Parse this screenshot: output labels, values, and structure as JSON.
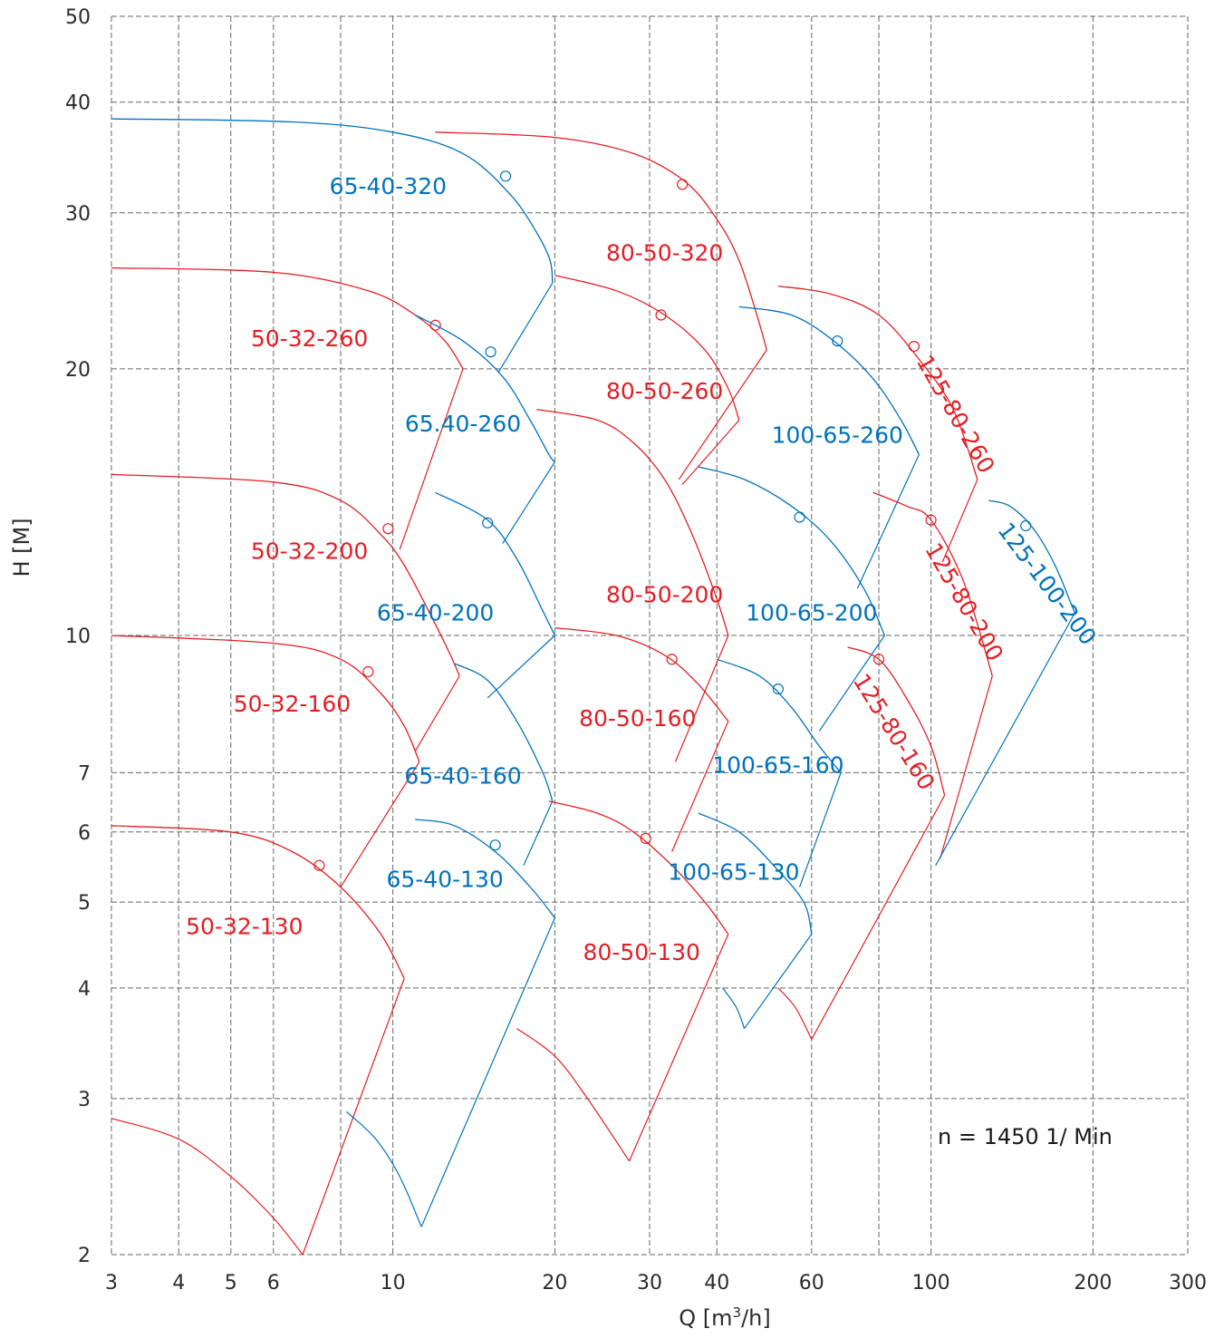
{
  "chart_data": {
    "type": "line",
    "title": "",
    "xlabel": "Q [m³/h]",
    "ylabel": "H [M]",
    "x_scale": "log",
    "y_scale": "log",
    "xlim": [
      3,
      300
    ],
    "ylim": [
      2,
      50
    ],
    "x_ticks": [
      3,
      4,
      5,
      6,
      10,
      20,
      30,
      40,
      60,
      100,
      200,
      300
    ],
    "y_ticks": [
      2,
      3,
      4,
      5,
      6,
      7,
      10,
      20,
      30,
      40,
      50
    ],
    "x_grid": [
      3,
      4,
      5,
      6,
      8,
      10,
      20,
      30,
      40,
      60,
      80,
      100,
      200,
      300
    ],
    "y_grid": [
      2,
      3,
      4,
      5,
      6,
      7,
      10,
      20,
      30,
      40,
      50
    ],
    "grid": true,
    "annotation": "n = 1450 1/ Min",
    "colors": {
      "red": "#e31e24",
      "blue": "#0072bc",
      "grid": "#666666"
    },
    "series": [
      {
        "name": "65-40-320",
        "color": "blue",
        "curve": [
          [
            3.0,
            38.3
          ],
          [
            6.5,
            38.0
          ],
          [
            10,
            37.0
          ],
          [
            13.5,
            35.0
          ],
          [
            16.5,
            31.5
          ],
          [
            18.5,
            28.5
          ],
          [
            19.6,
            26.5
          ],
          [
            19.8,
            25.0
          ]
        ],
        "edge": [
          [
            19.8,
            25.0
          ],
          [
            15.7,
            19.8
          ]
        ],
        "bep": [
          16.2,
          33.0
        ],
        "label_pos": [
          9.8,
          31.5
        ]
      },
      {
        "name": "80-50-320",
        "color": "red",
        "curve": [
          [
            12.0,
            37.0
          ],
          [
            20,
            36.5
          ],
          [
            28,
            35.0
          ],
          [
            35,
            32.5
          ],
          [
            40,
            29.5
          ],
          [
            44,
            26.5
          ],
          [
            48,
            22.5
          ],
          [
            49.5,
            21.0
          ]
        ],
        "edge": [
          [
            49.5,
            21.0
          ],
          [
            34.0,
            15.0
          ]
        ],
        "bep": [
          34.5,
          32.3
        ],
        "label_pos": [
          32.0,
          26.5
        ]
      },
      {
        "name": "50-32-260",
        "color": "red",
        "curve": [
          [
            3.0,
            26.0
          ],
          [
            6,
            25.7
          ],
          [
            9,
            24.5
          ],
          [
            11,
            23.0
          ],
          [
            12.5,
            21.5
          ],
          [
            13.5,
            20.0
          ]
        ],
        "edge": [
          [
            13.5,
            20.0
          ],
          [
            10.3,
            12.5
          ]
        ],
        "bep": [
          12.0,
          22.4
        ],
        "label_pos": [
          7.0,
          21.2
        ]
      },
      {
        "name": "65.40-260",
        "color": "blue",
        "curve": [
          [
            11.0,
            23.0
          ],
          [
            13.5,
            21.5
          ],
          [
            16,
            19.6
          ],
          [
            18,
            17.5
          ],
          [
            19.5,
            16.0
          ],
          [
            20.0,
            15.7
          ]
        ],
        "edge": [
          [
            20.0,
            15.7
          ],
          [
            16.0,
            12.7
          ]
        ],
        "bep": [
          15.2,
          20.9
        ],
        "label_pos": [
          13.5,
          17.0
        ]
      },
      {
        "name": "80-50-260",
        "color": "red",
        "curve": [
          [
            20.0,
            25.5
          ],
          [
            26,
            24.5
          ],
          [
            32,
            23.0
          ],
          [
            38,
            21.0
          ],
          [
            42,
            19.0
          ],
          [
            44,
            17.5
          ]
        ],
        "edge": [
          [
            44,
            17.5
          ],
          [
            34.5,
            14.8
          ]
        ],
        "bep": [
          31.5,
          23.0
        ],
        "label_pos": [
          32.0,
          18.5
        ]
      },
      {
        "name": "100-65-260",
        "color": "blue",
        "curve": [
          [
            44,
            23.5
          ],
          [
            55,
            23.0
          ],
          [
            66,
            21.5
          ],
          [
            78,
            19.5
          ],
          [
            88,
            17.5
          ],
          [
            95,
            16.0
          ]
        ],
        "edge": [
          [
            95,
            16.0
          ],
          [
            73,
            11.3
          ]
        ],
        "bep": [
          67,
          21.5
        ],
        "label_pos": [
          67,
          16.5
        ]
      },
      {
        "name": "125-80-260",
        "color": "red",
        "curve": [
          [
            52,
            24.8
          ],
          [
            65,
            24.3
          ],
          [
            80,
            23.0
          ],
          [
            95,
            20.5
          ],
          [
            110,
            18.0
          ],
          [
            122,
            15.0
          ]
        ],
        "edge": [
          [
            122,
            15.0
          ],
          [
            105,
            12.1
          ]
        ],
        "bep": [
          93,
          21.2
        ],
        "label_pos": [
          108,
          17.6
        ],
        "rotate": 60
      },
      {
        "name": "50-32-200",
        "color": "red",
        "curve": [
          [
            3.0,
            15.2
          ],
          [
            6,
            14.9
          ],
          [
            8,
            14.2
          ],
          [
            9.5,
            13.0
          ],
          [
            10.5,
            12.0
          ],
          [
            11.8,
            10.5
          ],
          [
            12.8,
            9.5
          ],
          [
            13.3,
            9.0
          ]
        ],
        "edge": [
          [
            13.3,
            9.0
          ],
          [
            11.0,
            7.4
          ]
        ],
        "bep": [
          9.8,
          13.2
        ],
        "label_pos": [
          7.0,
          12.2
        ]
      },
      {
        "name": "65-40-200",
        "color": "blue",
        "curve": [
          [
            12.0,
            14.5
          ],
          [
            15,
            13.5
          ],
          [
            17,
            12.2
          ],
          [
            18.8,
            10.8
          ],
          [
            20.0,
            10.0
          ]
        ],
        "edge": [
          [
            20.0,
            10.0
          ],
          [
            15.0,
            8.5
          ]
        ],
        "bep": [
          15.0,
          13.4
        ],
        "label_pos": [
          12.0,
          10.4
        ]
      },
      {
        "name": "80-50-200",
        "color": "red",
        "curve": [
          [
            18.5,
            18.0
          ],
          [
            24,
            17.5
          ],
          [
            28,
            16.5
          ],
          [
            32,
            15.0
          ],
          [
            36,
            13.0
          ],
          [
            40,
            11.0
          ],
          [
            42,
            10.0
          ]
        ],
        "edge": [
          [
            42,
            10.0
          ],
          [
            33.5,
            7.2
          ]
        ],
        "bep": [],
        "label_pos": [
          32.0,
          10.9
        ]
      },
      {
        "name": "100-65-200",
        "color": "blue",
        "curve": [
          [
            37,
            15.5
          ],
          [
            45,
            15.0
          ],
          [
            55,
            14.0
          ],
          [
            65,
            12.8
          ],
          [
            75,
            11.3
          ],
          [
            82,
            10.0
          ]
        ],
        "edge": [
          [
            82,
            10.0
          ],
          [
            62,
            7.8
          ]
        ],
        "bep": [
          57,
          13.6
        ],
        "label_pos": [
          60,
          10.4
        ]
      },
      {
        "name": "125-80-200",
        "color": "red",
        "curve": [
          [
            78,
            14.5
          ],
          [
            90,
            14.0
          ],
          [
            100,
            13.5
          ],
          [
            115,
            11.5
          ],
          [
            130,
            9.0
          ]
        ],
        "edge": [
          [
            130,
            9.0
          ],
          [
            104,
            5.6
          ]
        ],
        "bep": [
          100,
          13.5
        ],
        "label_pos": [
          112,
          10.8
        ],
        "rotate": 60
      },
      {
        "name": "125-100-200",
        "color": "blue",
        "curve": [
          [
            128,
            14.2
          ],
          [
            140,
            14.0
          ],
          [
            155,
            13.2
          ],
          [
            170,
            12.0
          ],
          [
            185,
            10.6
          ]
        ],
        "edge": [
          [
            185,
            10.6
          ],
          [
            102,
            5.5
          ]
        ],
        "bep": [
          150,
          13.3
        ],
        "label_pos": [
          160,
          11.3
        ],
        "rotate": 53
      },
      {
        "name": "50-32-160",
        "color": "red",
        "curve": [
          [
            3.0,
            10.0
          ],
          [
            6,
            9.8
          ],
          [
            8,
            9.4
          ],
          [
            9.5,
            8.6
          ],
          [
            10.5,
            7.9
          ],
          [
            11.2,
            7.2
          ]
        ],
        "edge": [
          [
            11.2,
            7.2
          ],
          [
            8.0,
            5.2
          ]
        ],
        "bep": [
          9.0,
          9.1
        ],
        "label_pos": [
          6.5,
          8.2
        ]
      },
      {
        "name": "65-40-160",
        "color": "blue",
        "curve": [
          [
            13,
            9.3
          ],
          [
            15,
            8.9
          ],
          [
            17,
            8.0
          ],
          [
            19,
            7.0
          ],
          [
            19.8,
            6.5
          ]
        ],
        "edge": [
          [
            19.8,
            6.5
          ],
          [
            17.5,
            5.5
          ]
        ],
        "bep": [],
        "label_pos": [
          13.5,
          6.8
        ]
      },
      {
        "name": "80-50-160",
        "color": "red",
        "curve": [
          [
            20,
            10.2
          ],
          [
            26,
            10.0
          ],
          [
            32,
            9.5
          ],
          [
            37,
            8.8
          ],
          [
            42,
            8.0
          ]
        ],
        "edge": [
          [
            42,
            8.0
          ],
          [
            33.0,
            5.7
          ]
        ],
        "bep": [
          33.0,
          9.4
        ],
        "label_pos": [
          28.5,
          7.9
        ]
      },
      {
        "name": "100-65-160",
        "color": "blue",
        "curve": [
          [
            40,
            9.4
          ],
          [
            48,
            9.0
          ],
          [
            55,
            8.3
          ],
          [
            62,
            7.5
          ],
          [
            68,
            7.0
          ]
        ],
        "edge": [
          [
            68,
            7.0
          ],
          [
            57,
            5.2
          ]
        ],
        "bep": [
          52,
          8.7
        ],
        "label_pos": [
          52,
          7.0
        ]
      },
      {
        "name": "125-80-160",
        "color": "red",
        "curve": [
          [
            70,
            9.7
          ],
          [
            80,
            9.4
          ],
          [
            90,
            8.5
          ],
          [
            100,
            7.5
          ],
          [
            106,
            6.6
          ]
        ],
        "edge": [
          [
            106,
            6.6
          ],
          [
            60,
            3.5
          ]
        ],
        "bep": [
          80,
          9.4
        ],
        "label_pos": [
          83,
          7.7
        ],
        "rotate": 58
      },
      {
        "name": "50-32-130",
        "color": "red",
        "curve": [
          [
            3.0,
            6.1
          ],
          [
            5,
            6.0
          ],
          [
            6.5,
            5.7
          ],
          [
            8,
            5.2
          ],
          [
            9.5,
            4.6
          ],
          [
            10.5,
            4.1
          ]
        ],
        "edge": [
          [
            10.5,
            4.1
          ],
          [
            6.8,
            2.0
          ]
        ],
        "bep": [
          7.3,
          5.5
        ],
        "label_pos": [
          5.3,
          4.6
        ]
      },
      {
        "name": "65-40-130",
        "color": "blue",
        "curve": [
          [
            11,
            6.2
          ],
          [
            13,
            6.1
          ],
          [
            15.5,
            5.7
          ],
          [
            18,
            5.2
          ],
          [
            20,
            4.8
          ]
        ],
        "edge": [
          [
            20,
            4.8
          ],
          [
            11.3,
            2.15
          ]
        ],
        "bep": [
          15.5,
          5.8
        ],
        "label_pos": [
          12.5,
          5.2
        ]
      },
      {
        "name": "80-50-130",
        "color": "red",
        "curve": [
          [
            19.5,
            6.5
          ],
          [
            24,
            6.3
          ],
          [
            28,
            6.0
          ],
          [
            33,
            5.5
          ],
          [
            38,
            5.0
          ],
          [
            42,
            4.6
          ]
        ],
        "edge": [
          [
            42,
            4.6
          ],
          [
            27.5,
            2.55
          ]
        ],
        "bep": [
          29.5,
          5.9
        ],
        "label_pos": [
          29,
          4.3
        ]
      },
      {
        "name": "100-65-130",
        "color": "blue",
        "curve": [
          [
            37,
            6.3
          ],
          [
            44,
            6.0
          ],
          [
            51,
            5.5
          ],
          [
            58,
            5.0
          ],
          [
            60,
            4.6
          ]
        ],
        "edge": [
          [
            60,
            4.6
          ],
          [
            45,
            3.6
          ]
        ],
        "bep": [],
        "label_pos": [
          43,
          5.3
        ]
      }
    ],
    "tail_curves": [
      {
        "color": "red",
        "points": [
          [
            3.0,
            2.85
          ],
          [
            4,
            2.7
          ],
          [
            5,
            2.45
          ],
          [
            6,
            2.2
          ],
          [
            6.8,
            2.0
          ]
        ]
      },
      {
        "color": "blue",
        "points": [
          [
            8.2,
            2.9
          ],
          [
            9.3,
            2.7
          ],
          [
            10.3,
            2.45
          ],
          [
            11.3,
            2.15
          ]
        ]
      },
      {
        "color": "red",
        "points": [
          [
            17.0,
            3.6
          ],
          [
            20,
            3.35
          ],
          [
            23,
            3.0
          ],
          [
            27.5,
            2.55
          ]
        ]
      },
      {
        "color": "blue",
        "points": [
          [
            41,
            4.0
          ],
          [
            43.5,
            3.8
          ],
          [
            45,
            3.6
          ]
        ]
      },
      {
        "color": "red",
        "points": [
          [
            52,
            4.0
          ],
          [
            56,
            3.8
          ],
          [
            60,
            3.5
          ]
        ]
      }
    ]
  }
}
